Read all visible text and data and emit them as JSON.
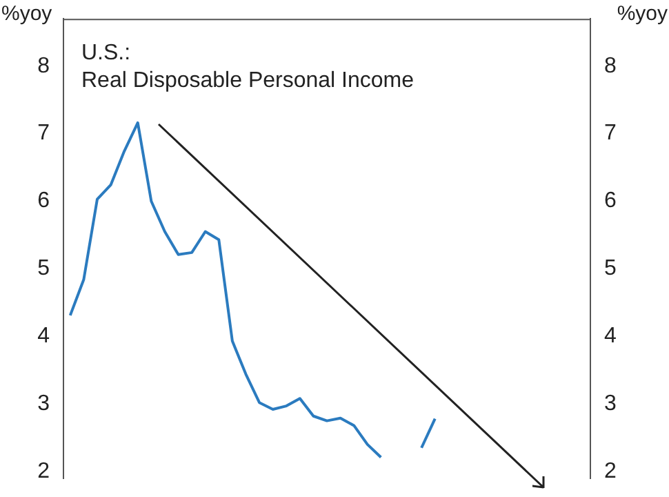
{
  "chart_data": {
    "type": "line",
    "title": "U.S.:",
    "subtitle": "Real Disposable Personal Income",
    "ylabel": "%yoy",
    "y2label": "%yoy",
    "categories": [
      null,
      null,
      null,
      null,
      null,
      null,
      null,
      null,
      null,
      null,
      null,
      null,
      null,
      null,
      null,
      null,
      null,
      null,
      null,
      null,
      null,
      null,
      null,
      null,
      null,
      null,
      null,
      null,
      null,
      null,
      null,
      null,
      null,
      null,
      null,
      null,
      null,
      null,
      null
    ],
    "series": [
      {
        "color": "#2b7bbf",
        "values": [
          4.31,
          4.84,
          6.03,
          6.24,
          6.74,
          7.16,
          6.0,
          5.55,
          5.21,
          5.24,
          5.55,
          5.43,
          3.93,
          3.44,
          3.02,
          2.92,
          2.97,
          3.08,
          2.82,
          2.75,
          2.79,
          2.68,
          2.4,
          2.21,
          null,
          null,
          null,
          null,
          null,
          null,
          null,
          null,
          null,
          null,
          null,
          null,
          null,
          null,
          null
        ]
      },
      {
        "color": "#2b7bbf",
        "values": [
          null,
          null,
          null,
          null,
          null,
          null,
          null,
          null,
          null,
          null,
          null,
          null,
          null,
          null,
          null,
          null,
          null,
          null,
          null,
          null,
          null,
          null,
          null,
          null,
          null,
          null,
          2.35,
          2.78,
          null,
          null,
          null,
          null,
          null,
          null,
          null,
          null,
          null,
          null,
          null
        ]
      }
    ],
    "ylim": [
      1.9,
      8.7
    ],
    "yticks": [
      2,
      3,
      4,
      5,
      6,
      7,
      8
    ],
    "y2lim": [
      1.9,
      8.7
    ],
    "y2ticks": [
      2,
      3,
      4,
      5,
      6,
      7,
      8
    ],
    "tick_labels": "y",
    "grid": false,
    "legend": false,
    "marker": "none",
    "line_style": "solid"
  }
}
